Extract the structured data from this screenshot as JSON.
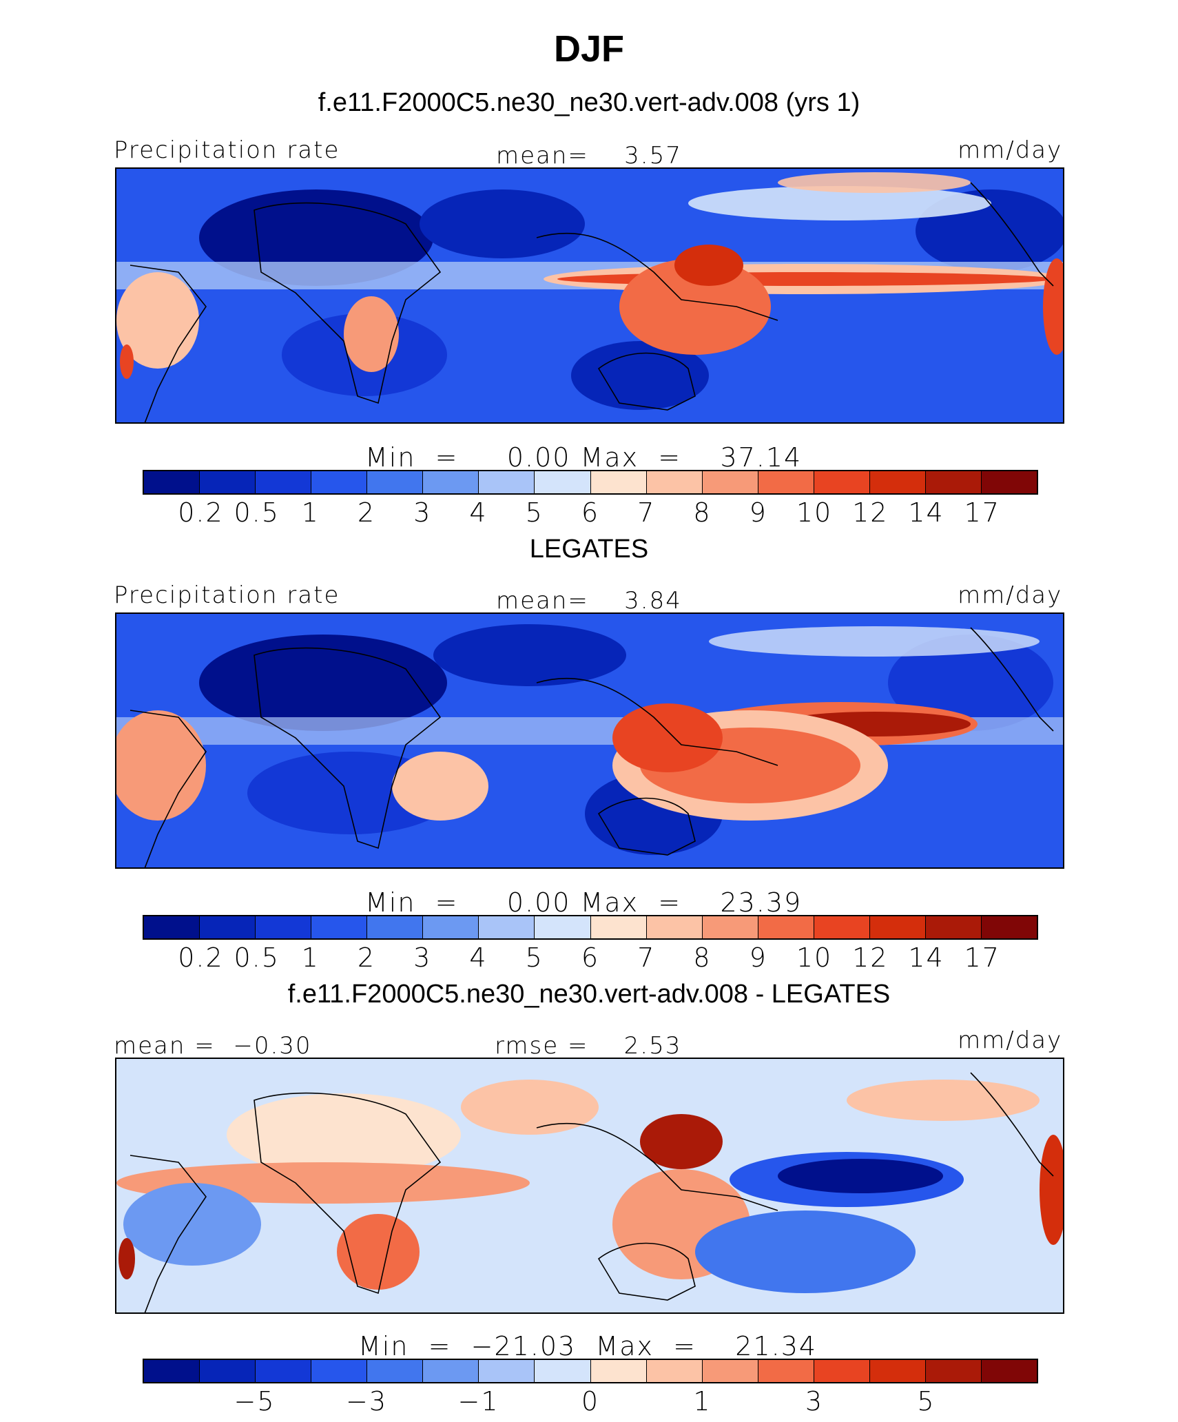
{
  "title": "DJF",
  "panels": [
    {
      "subtitle": "f.e11.F2000C5.ne30_ne30.vert-adv.008 (yrs 1)",
      "left_label": "Precipitation rate",
      "center_label": "mean=    3.57",
      "right_label": "mm/day",
      "min_label": "Min",
      "min_value": "0.00",
      "max_label": "Max",
      "max_value": "37.14",
      "colorbar_ticks": [
        "0.2",
        "0.5",
        "1",
        "2",
        "3",
        "4",
        "5",
        "6",
        "7",
        "8",
        "9",
        "10",
        "12",
        "14",
        "17"
      ],
      "colorbar_colors": [
        "#00108c",
        "#0625b8",
        "#1338d6",
        "#2656ec",
        "#4176ee",
        "#6c99f2",
        "#a9c4f8",
        "#d4e4fb",
        "#fde3cf",
        "#fcc3a6",
        "#f79a78",
        "#f26b46",
        "#e84422",
        "#d42e0c",
        "#aa1a08",
        "#800606"
      ]
    },
    {
      "subtitle": "LEGATES",
      "left_label": "Precipitation rate",
      "center_label": "mean=    3.84",
      "right_label": "mm/day",
      "min_label": "Min",
      "min_value": "0.00",
      "max_label": "Max",
      "max_value": "23.39",
      "colorbar_ticks": [
        "0.2",
        "0.5",
        "1",
        "2",
        "3",
        "4",
        "5",
        "6",
        "7",
        "8",
        "9",
        "10",
        "12",
        "14",
        "17"
      ],
      "colorbar_colors": [
        "#00108c",
        "#0625b8",
        "#1338d6",
        "#2656ec",
        "#4176ee",
        "#6c99f2",
        "#a9c4f8",
        "#d4e4fb",
        "#fde3cf",
        "#fcc3a6",
        "#f79a78",
        "#f26b46",
        "#e84422",
        "#d42e0c",
        "#aa1a08",
        "#800606"
      ]
    },
    {
      "subtitle": "f.e11.F2000C5.ne30_ne30.vert-adv.008 - LEGATES",
      "left_label": "mean =  −0.30",
      "center_label": "rmse =    2.53",
      "right_label": "mm/day",
      "min_label": "Min",
      "min_value": "−21.03",
      "max_label": "Max",
      "max_value": "21.34",
      "colorbar_ticks": [
        "",
        "−5",
        "",
        "−3",
        "",
        "−1",
        "",
        "0",
        "",
        "1",
        "",
        "3",
        "",
        "5",
        ""
      ],
      "colorbar_colors": [
        "#00108c",
        "#0625b8",
        "#1338d6",
        "#2656ec",
        "#4176ee",
        "#6c99f2",
        "#a9c4f8",
        "#d4e4fb",
        "#fde3cf",
        "#fcc3a6",
        "#f79a78",
        "#f26b46",
        "#e84422",
        "#d42e0c",
        "#aa1a08",
        "#800606"
      ]
    }
  ]
}
